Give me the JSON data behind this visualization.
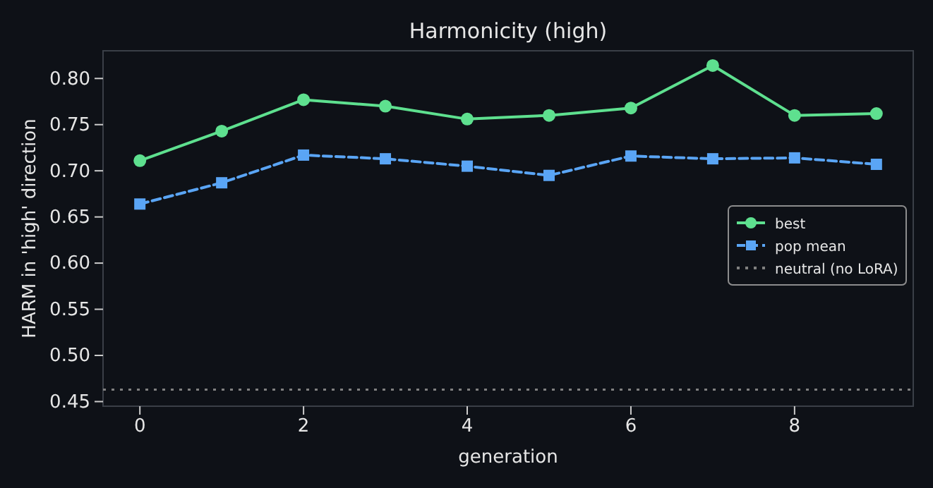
{
  "chart_data": {
    "type": "line",
    "title": "Harmonicity (high)",
    "xlabel": "generation",
    "ylabel": "HARM in 'high' direction",
    "x": [
      0,
      1,
      2,
      3,
      4,
      5,
      6,
      7,
      8,
      9
    ],
    "series": [
      {
        "name": "best",
        "color": "#5ee08f",
        "marker": "circle",
        "line_style": "solid",
        "values": [
          0.711,
          0.743,
          0.777,
          0.77,
          0.756,
          0.76,
          0.768,
          0.814,
          0.76,
          0.762
        ]
      },
      {
        "name": "pop mean",
        "color": "#5aa5f5",
        "marker": "square",
        "line_style": "dashed",
        "values": [
          0.664,
          0.687,
          0.717,
          0.713,
          0.705,
          0.695,
          0.716,
          0.713,
          0.714,
          0.707
        ]
      }
    ],
    "ref_lines": [
      {
        "axis": "y",
        "value": 0.463,
        "label": "neutral (no LoRA)",
        "color": "#808080",
        "line_style": "dotted"
      }
    ],
    "xlim": [
      -0.45,
      9.45
    ],
    "xticks": [
      0,
      2,
      4,
      6,
      8
    ],
    "ylim": [
      0.445,
      0.83
    ],
    "yticks": [
      {
        "value": 0.45,
        "label": "0.45"
      },
      {
        "value": 0.5,
        "label": "0.50"
      },
      {
        "value": 0.55,
        "label": "0.55"
      },
      {
        "value": 0.6,
        "label": "0.60"
      },
      {
        "value": 0.65,
        "label": "0.65"
      },
      {
        "value": 0.7,
        "label": "0.70"
      },
      {
        "value": 0.75,
        "label": "0.75"
      },
      {
        "value": 0.8,
        "label": "0.80"
      }
    ],
    "grid": false,
    "legend": "right"
  }
}
